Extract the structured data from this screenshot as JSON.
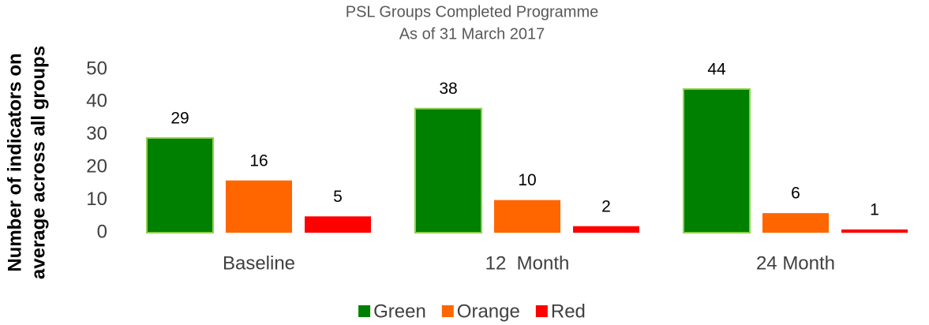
{
  "chart_data": {
    "type": "bar",
    "title": "PSL Groups Completed Programme",
    "subtitle": "As of 31 March 2017",
    "ylabel": [
      "Number of indicators on",
      "average across all groups"
    ],
    "categories": [
      "Baseline",
      "12  Month",
      "24 Month"
    ],
    "series": [
      {
        "name": "Green",
        "color": "#008000",
        "values": [
          29,
          38,
          44
        ]
      },
      {
        "name": "Orange",
        "color": "#ff6600",
        "values": [
          16,
          10,
          6
        ]
      },
      {
        "name": "Red",
        "color": "#ff0000",
        "values": [
          5,
          2,
          1
        ]
      }
    ],
    "ylim": [
      0,
      50
    ],
    "yticks": [
      0,
      10,
      20,
      30,
      40,
      50
    ],
    "grid": false,
    "legend": "bottom"
  }
}
